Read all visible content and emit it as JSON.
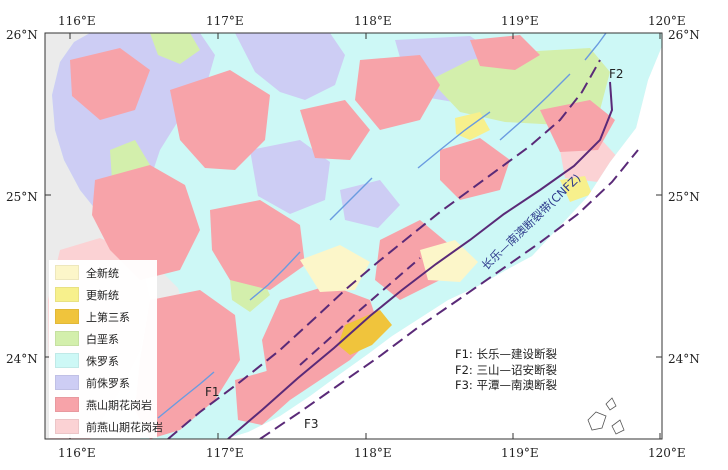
{
  "map": {
    "longitude_labels": [
      "116°E",
      "117°E",
      "118°E",
      "119°E",
      "120°E"
    ],
    "latitude_labels": [
      "26°N",
      "25°N",
      "24°N"
    ],
    "legend": [
      {
        "label": "全新统",
        "color": "#fcf6c9"
      },
      {
        "label": "更新统",
        "color": "#f7f08c"
      },
      {
        "label": "上第三系",
        "color": "#f0c43c"
      },
      {
        "label": "白垩系",
        "color": "#d3efac"
      },
      {
        "label": "侏罗系",
        "color": "#cdf8f6"
      },
      {
        "label": "前侏罗系",
        "color": "#cdcdf4"
      },
      {
        "label": "燕山期花岗岩",
        "color": "#f7a3a9"
      },
      {
        "label": "前燕山期花岗岩",
        "color": "#fbd2d4"
      }
    ],
    "fault_key": [
      "F1: 长乐—建设断裂",
      "F2: 三山—诏安断裂",
      "F3: 平潭—南澳断裂"
    ],
    "fault_tags": {
      "f1": "F1",
      "f2": "F2",
      "f3": "F3"
    },
    "zone_label": "长乐—南澳断裂带(CNFZ)",
    "colors": {
      "background": "#ebebeb",
      "sea": "#ffffff",
      "fault_line": "#5a2a78",
      "river": "#6a9be0"
    }
  }
}
